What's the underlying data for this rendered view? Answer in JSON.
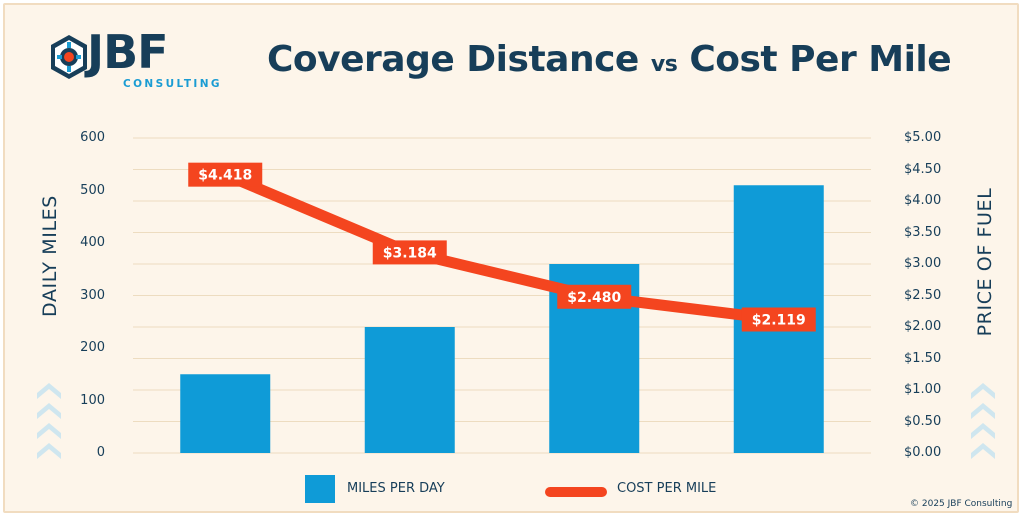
{
  "brand": {
    "logo_word": "JBF",
    "logo_sub": "CONSULTING",
    "colors": {
      "navy": "#173e59",
      "blue": "#0f9bd7",
      "orange": "#f4451f",
      "background": "#fdf5ea"
    }
  },
  "title_main": "Coverage Distance ",
  "title_vs": "vs",
  "title_end": " Cost Per Mile",
  "copyright": "© 2025 JBF Consulting",
  "chart_data": {
    "type": "bar",
    "categories": [
      "",
      "",
      "",
      ""
    ],
    "left_axis": {
      "label": "DAILY MILES",
      "range": [
        0,
        600
      ],
      "ticks": [
        "0",
        "100",
        "200",
        "300",
        "400",
        "500",
        "600"
      ]
    },
    "right_axis": {
      "label": "PRICE OF FUEL",
      "range": [
        0,
        5
      ],
      "ticks": [
        "$0.00",
        "$0.50",
        "$1.00",
        "$1.50",
        "$2.00",
        "$2.50",
        "$3.00",
        "$3.50",
        "$4.00",
        "$4.50",
        "$5.00"
      ]
    },
    "series": [
      {
        "name": "MILES PER DAY",
        "type": "bar",
        "axis": "left",
        "values": [
          150,
          240,
          360,
          510
        ]
      },
      {
        "name": "COST PER MILE",
        "type": "line",
        "axis": "right",
        "values": [
          4.418,
          3.184,
          2.48,
          2.119
        ],
        "labels": [
          "$4.418",
          "$3.184",
          "$2.480",
          "$2.119"
        ]
      }
    ],
    "grid": true,
    "legend_placement": "bottom-center"
  }
}
